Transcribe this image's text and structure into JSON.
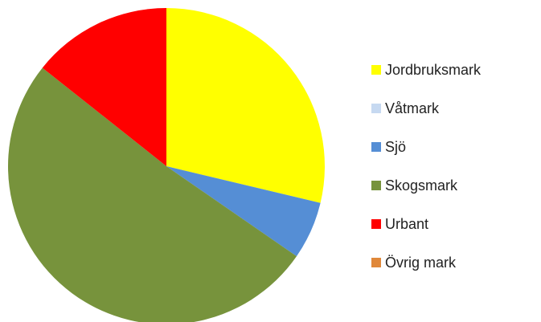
{
  "chart_data": {
    "type": "pie",
    "categories": [
      "Jordbruksmark",
      "Våtmark",
      "Sjö",
      "Skogsmark",
      "Urbant",
      "Övrig mark"
    ],
    "values": [
      28.7,
      0,
      5.9,
      51.0,
      14.3,
      0
    ],
    "colors": [
      "#ffff00",
      "#c6d9f1",
      "#558ed5",
      "#77933c",
      "#ff0000",
      "#e0883a"
    ],
    "legend": "right"
  }
}
